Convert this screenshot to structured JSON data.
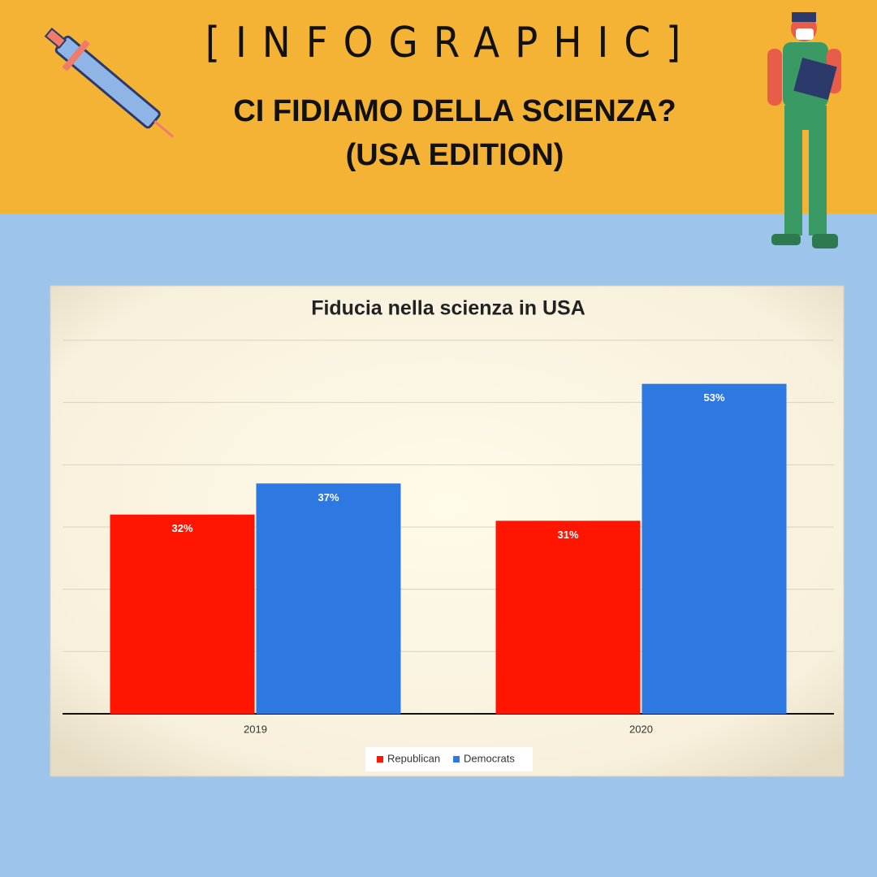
{
  "header": {
    "tag": "[INFOGRAPHIC]",
    "title": "CI FIDIAMO DELLA SCIENZA?",
    "subtitle": "(USA EDITION)"
  },
  "chart_data": {
    "type": "bar",
    "title": "Fiducia nella scienza in USA",
    "categories": [
      "2019",
      "2020"
    ],
    "series": [
      {
        "name": "Republican",
        "color": "#ff1500",
        "values": [
          32,
          31
        ],
        "value_labels": [
          "32%",
          "31%"
        ]
      },
      {
        "name": "Democrats",
        "color": "#2e78e2",
        "values": [
          37,
          53
        ],
        "value_labels": [
          "37%",
          "53%"
        ]
      }
    ],
    "ylim": [
      0,
      60
    ],
    "yticks": [
      0,
      10,
      20,
      30,
      40,
      50,
      60
    ],
    "grid": true,
    "legend": "bottom"
  }
}
